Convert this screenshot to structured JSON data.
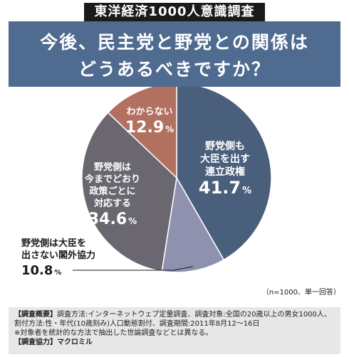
{
  "header": {
    "survey_title": "東洋経済1000人意識調査",
    "question_line1": "今後、民主党と野党との関係は",
    "question_line2": "どうあるべきですか？"
  },
  "chart_data": {
    "type": "pie",
    "start_angle_deg": 0,
    "direction": "clockwise",
    "slices": [
      {
        "lines": [
          "野党側も",
          "大臣を出す",
          "連立政権"
        ],
        "value": 41.7,
        "value_text": "41.7",
        "unit": "%",
        "color": "#4a5f7c"
      },
      {
        "lines": [
          "野党側は大臣を",
          "出さない閣外協力"
        ],
        "value": 10.8,
        "value_text": "10.8",
        "unit": "%",
        "color": "#8e92ae"
      },
      {
        "lines": [
          "野党側は",
          "今までどおり",
          "政策ごとに",
          "対応する"
        ],
        "value": 34.6,
        "value_text": "34.6",
        "unit": "%",
        "color": "#6a6770"
      },
      {
        "lines": [
          "わからない"
        ],
        "value": 12.9,
        "value_text": "12.9",
        "unit": "%",
        "color": "#b27060"
      }
    ],
    "sample_note": "（n=1000、単一回答）"
  },
  "notes": {
    "overview_label": "【調査概要】",
    "overview_text": "調査方法:インターネットウェブ定量調査、調査対象:全国の20歳以上の男女1000人、割付方法:性・年代(10歳刻み)人口動態割付、調査期間:2011年8月12〜16日",
    "caution": "※対象者を統計的な方法で抽出した世論調査などとは異なる。",
    "cooperation_label": "【調査協力】",
    "cooperation_text": "マクロミル"
  }
}
